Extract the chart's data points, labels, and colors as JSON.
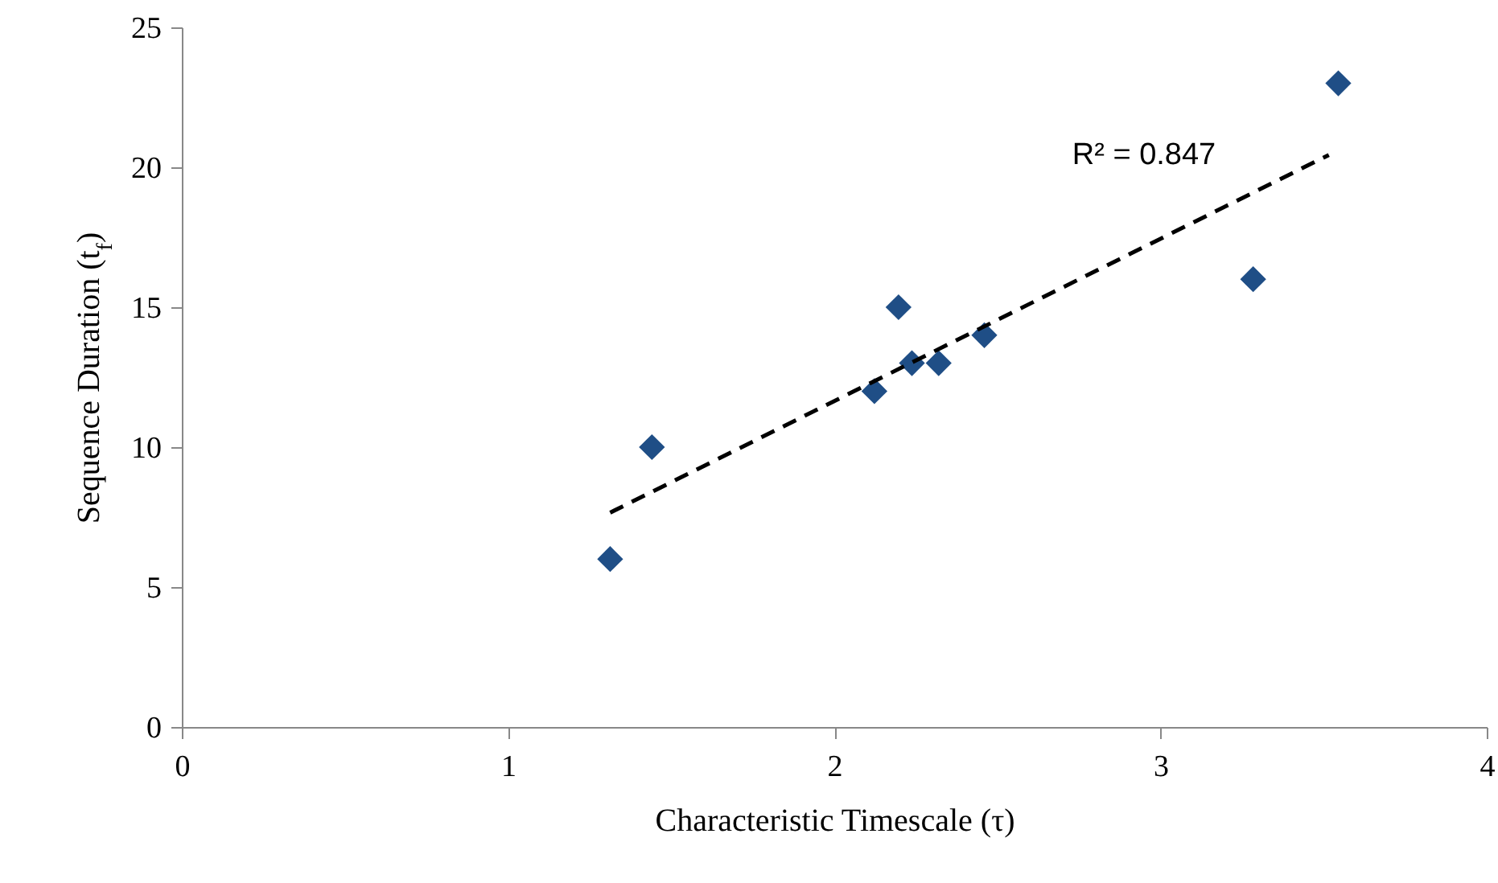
{
  "chart_data": {
    "type": "scatter",
    "xlabel": "Characteristic Timescale (τ)",
    "ylabel": "Sequence Duration (t$_{f}$)",
    "xlim": [
      0,
      4
    ],
    "xticks": [
      0,
      1,
      2,
      3,
      4
    ],
    "ylim": [
      0,
      25
    ],
    "yticks": [
      0,
      5,
      10,
      15,
      20,
      25
    ],
    "grid": false,
    "series": [
      {
        "type": "scatter",
        "color": "#1f4e86",
        "marker": "diamond",
        "x": [
          1.313,
          1.441,
          2.123,
          2.197,
          2.238,
          2.32,
          2.46,
          3.284,
          3.545
        ],
        "values": [
          6,
          10,
          12,
          15,
          13,
          13,
          14,
          16,
          23
        ]
      },
      {
        "type": "line",
        "color": "#000000",
        "line_style": "dashed",
        "x": [
          1.313,
          3.516
        ],
        "values": [
          7.66,
          20.44
        ]
      }
    ],
    "annotations": [
      "R² = 0.847"
    ]
  }
}
